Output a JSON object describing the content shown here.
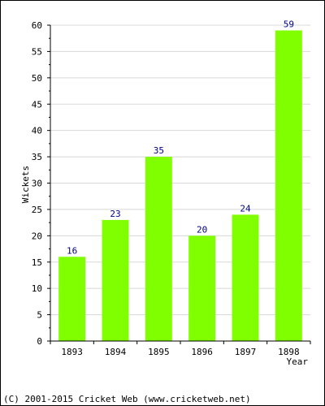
{
  "chart_data": {
    "type": "bar",
    "title": "",
    "xlabel": "Year",
    "ylabel": "Wickets",
    "categories": [
      "1893",
      "1894",
      "1895",
      "1896",
      "1897",
      "1898"
    ],
    "values": [
      16,
      23,
      35,
      20,
      24,
      59
    ],
    "ylim": [
      0,
      60
    ],
    "yticks": [
      0,
      5,
      10,
      15,
      20,
      25,
      30,
      35,
      40,
      45,
      50,
      55,
      60
    ],
    "grid": true,
    "legend": "none"
  },
  "colors": {
    "bar": "#80FF00",
    "value_label": "#00008B",
    "grid": "#D8D8D8",
    "axis": "#000000"
  },
  "footer": {
    "credit": "(C) 2001-2015 Cricket Web (www.cricketweb.net)"
  }
}
